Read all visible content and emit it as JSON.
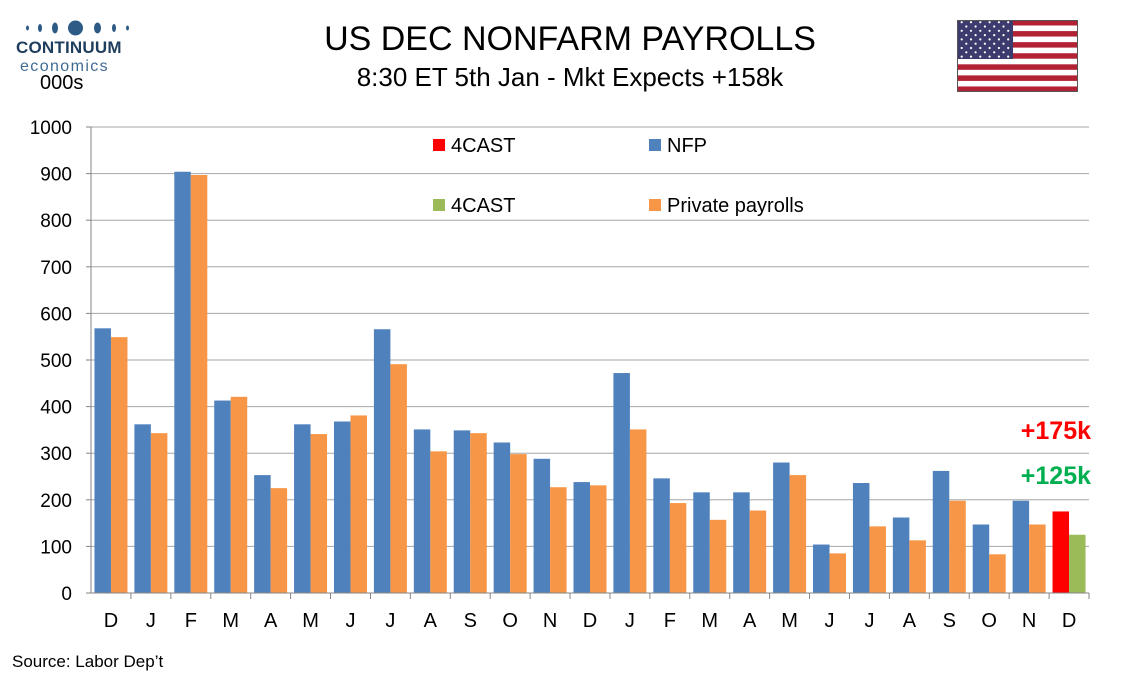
{
  "logo": {
    "name": "CONTINUUM",
    "sub": "economics"
  },
  "units": "000s",
  "title": "US DEC NONFARM PAYROLLS",
  "subtitle": "8:30 ET 5th Jan - Mkt Expects +158k",
  "source": "Source: Labor Dep’t",
  "colors": {
    "nfp": "#4f81bd",
    "private": "#f79646",
    "forecast_nfp": "#ff0000",
    "forecast_private": "#9bbb59",
    "grid": "#a6a6a6"
  },
  "chart_data": {
    "type": "bar",
    "ylim": [
      0,
      1000
    ],
    "yticks": [
      0,
      100,
      200,
      300,
      400,
      500,
      600,
      700,
      800,
      900,
      1000
    ],
    "grid": true,
    "legend_position": "top-center",
    "categories": [
      "D",
      "J",
      "F",
      "M",
      "A",
      "M",
      "J",
      "J",
      "A",
      "S",
      "O",
      "N",
      "D",
      "J",
      "F",
      "M",
      "A",
      "M",
      "J",
      "J",
      "A",
      "S",
      "O",
      "N",
      "D"
    ],
    "series": [
      {
        "name": "NFP",
        "color": "#4f81bd",
        "values": [
          568,
          362,
          904,
          413,
          253,
          362,
          368,
          566,
          351,
          349,
          323,
          288,
          238,
          472,
          246,
          216,
          216,
          280,
          104,
          236,
          162,
          262,
          147,
          198,
          null
        ]
      },
      {
        "name": "Private payrolls",
        "color": "#f79646",
        "values": [
          549,
          343,
          897,
          421,
          225,
          341,
          381,
          491,
          304,
          343,
          298,
          227,
          231,
          351,
          193,
          157,
          177,
          253,
          85,
          143,
          113,
          198,
          83,
          147,
          null
        ]
      },
      {
        "name": "4CAST",
        "color": "#ff0000",
        "values": [
          null,
          null,
          null,
          null,
          null,
          null,
          null,
          null,
          null,
          null,
          null,
          null,
          null,
          null,
          null,
          null,
          null,
          null,
          null,
          null,
          null,
          null,
          null,
          null,
          175
        ]
      },
      {
        "name": "4CAST",
        "color": "#9bbb59",
        "values": [
          null,
          null,
          null,
          null,
          null,
          null,
          null,
          null,
          null,
          null,
          null,
          null,
          null,
          null,
          null,
          null,
          null,
          null,
          null,
          null,
          null,
          null,
          null,
          null,
          125
        ]
      }
    ],
    "legend": [
      {
        "label": "4CAST",
        "color": "#ff0000"
      },
      {
        "label": "NFP",
        "color": "#4f81bd"
      },
      {
        "label": "4CAST",
        "color": "#9bbb59"
      },
      {
        "label": "Private payrolls",
        "color": "#f79646"
      }
    ],
    "annotations": [
      {
        "text": "+175k",
        "color": "#ff0000"
      },
      {
        "text": "+125k",
        "color": "#00b050"
      }
    ]
  }
}
